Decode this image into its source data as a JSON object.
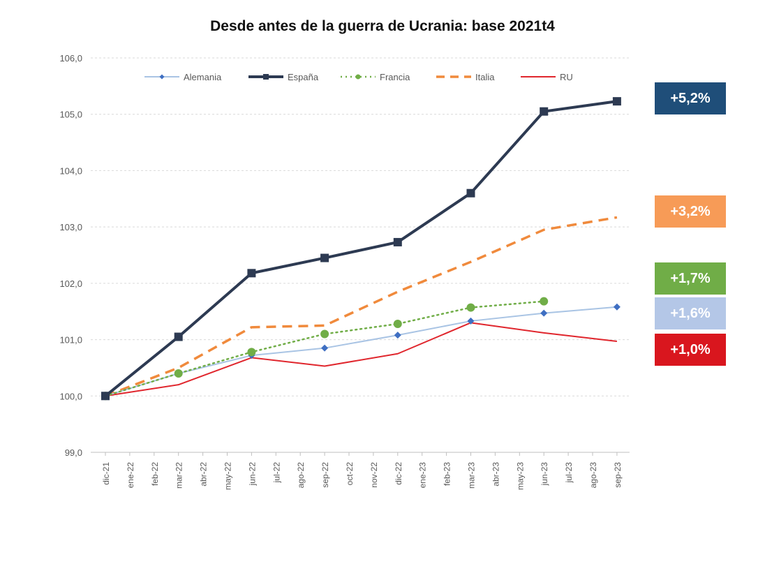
{
  "chart_data": {
    "type": "line",
    "title": "Desde antes de la guerra de Ucrania: base 2021t4",
    "xlabel": "",
    "ylabel": "",
    "x": [
      "dic-21",
      "ene-22",
      "feb-22",
      "mar-22",
      "abr-22",
      "may-22",
      "jun-22",
      "jul-22",
      "ago-22",
      "sep-22",
      "oct-22",
      "nov-22",
      "dic-22",
      "ene-23",
      "feb-23",
      "mar-23",
      "abr-23",
      "may-23",
      "jun-23",
      "jul-23",
      "ago-23",
      "sep-23"
    ],
    "ylim": [
      99.0,
      106.0
    ],
    "yticks": [
      "99,0",
      "100,0",
      "101,0",
      "102,0",
      "103,0",
      "104,0",
      "105,0",
      "106,0"
    ],
    "ytick_values": [
      99,
      100,
      101,
      102,
      103,
      104,
      105,
      106
    ],
    "grid": true,
    "legend_position": "top",
    "series": [
      {
        "name": "Alemania",
        "color": "#a9c4e4",
        "marker_color": "#3f6fc2",
        "style": "solid",
        "marker": "diamond",
        "points": [
          {
            "x": "dic-21",
            "y": 100.0
          },
          {
            "x": "mar-22",
            "y": 100.4
          },
          {
            "x": "jun-22",
            "y": 100.72
          },
          {
            "x": "sep-22",
            "y": 100.85
          },
          {
            "x": "dic-22",
            "y": 101.08
          },
          {
            "x": "mar-23",
            "y": 101.33
          },
          {
            "x": "jun-23",
            "y": 101.47
          },
          {
            "x": "sep-23",
            "y": 101.58
          }
        ]
      },
      {
        "name": "España",
        "color": "#2d3a52",
        "marker_color": "#2d3a52",
        "style": "solid",
        "marker": "square",
        "points": [
          {
            "x": "dic-21",
            "y": 100.0
          },
          {
            "x": "mar-22",
            "y": 101.05
          },
          {
            "x": "jun-22",
            "y": 102.18
          },
          {
            "x": "sep-22",
            "y": 102.45
          },
          {
            "x": "dic-22",
            "y": 102.73
          },
          {
            "x": "mar-23",
            "y": 103.6
          },
          {
            "x": "jun-23",
            "y": 105.05
          },
          {
            "x": "sep-23",
            "y": 105.23
          }
        ]
      },
      {
        "name": "Francia",
        "color": "#70ad47",
        "marker_color": "#70ad47",
        "style": "dotted",
        "marker": "circle",
        "points": [
          {
            "x": "dic-21",
            "y": 100.0
          },
          {
            "x": "mar-22",
            "y": 100.4
          },
          {
            "x": "jun-22",
            "y": 100.78
          },
          {
            "x": "sep-22",
            "y": 101.1
          },
          {
            "x": "dic-22",
            "y": 101.28
          },
          {
            "x": "mar-23",
            "y": 101.57
          },
          {
            "x": "jun-23",
            "y": 101.68
          }
        ]
      },
      {
        "name": "Italia",
        "color": "#f08a3c",
        "marker_color": "#f08a3c",
        "style": "dashed",
        "marker": "none",
        "points": [
          {
            "x": "dic-21",
            "y": 100.0
          },
          {
            "x": "mar-22",
            "y": 100.5
          },
          {
            "x": "jun-22",
            "y": 101.22
          },
          {
            "x": "sep-22",
            "y": 101.25
          },
          {
            "x": "dic-22",
            "y": 101.85
          },
          {
            "x": "mar-23",
            "y": 102.38
          },
          {
            "x": "jun-23",
            "y": 102.95
          },
          {
            "x": "sep-23",
            "y": 103.17
          }
        ]
      },
      {
        "name": "RU",
        "color": "#e0262d",
        "marker_color": "#e0262d",
        "style": "solid",
        "marker": "none",
        "points": [
          {
            "x": "dic-21",
            "y": 100.0
          },
          {
            "x": "mar-22",
            "y": 100.2
          },
          {
            "x": "jun-22",
            "y": 100.68
          },
          {
            "x": "sep-22",
            "y": 100.53
          },
          {
            "x": "dic-22",
            "y": 100.75
          },
          {
            "x": "mar-23",
            "y": 101.3
          },
          {
            "x": "jun-23",
            "y": 101.12
          },
          {
            "x": "sep-23",
            "y": 100.97
          }
        ]
      }
    ],
    "annotations": [
      {
        "text": "+5,2%",
        "color": "#1f4e79"
      },
      {
        "text": "+3,2%",
        "color": "#f79b57"
      },
      {
        "text": "+1,7%",
        "color": "#70ad47"
      },
      {
        "text": "+1,6%",
        "color": "#b4c7e7"
      },
      {
        "text": "+1,0%",
        "color": "#d9161e"
      }
    ]
  }
}
